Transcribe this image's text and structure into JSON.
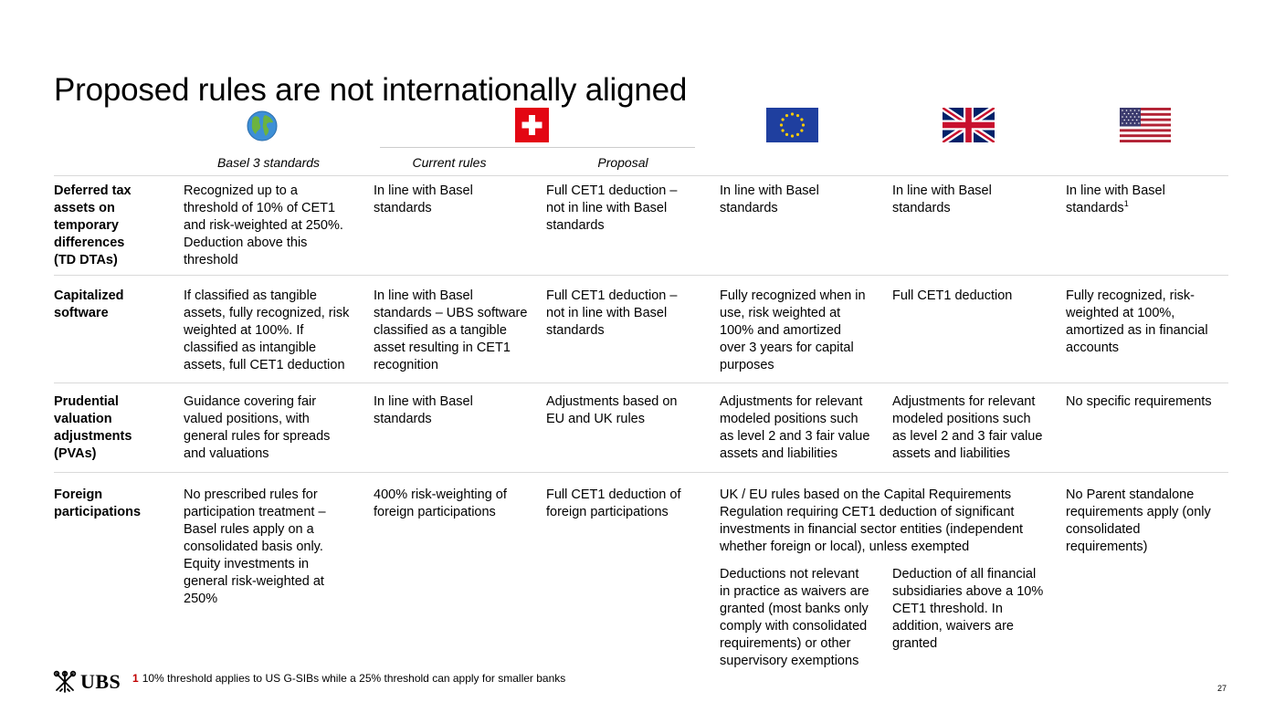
{
  "title": "Proposed rules are not internationally aligned",
  "icons": {
    "basel": "globe-icon",
    "swiss": "swiss-flag-icon",
    "eu": "eu-flag-icon",
    "uk": "uk-flag-icon",
    "us": "us-flag-icon"
  },
  "colors": {
    "swiss_red": "#e30613",
    "eu_blue": "#1f3f9f",
    "eu_star": "#ffcc00",
    "ubs_red": "#c00000"
  },
  "columns": {
    "basel": "Basel 3 standards",
    "current": "Current rules",
    "proposal": "Proposal"
  },
  "rows": [
    {
      "label": "Deferred tax\nassets on\ntemporary\ndifferences\n(TD DTAs)",
      "basel": "Recognized up to a\nthreshold of 10% of CET1\nand risk-weighted at 250%.\nDeduction above this\nthreshold",
      "current": "In line with Basel\nstandards",
      "proposal": "Full CET1 deduction –\nnot in line with Basel\nstandards",
      "eu": "In line with Basel\nstandards",
      "uk": "In line with Basel\nstandards",
      "us": "In line with Basel\nstandards",
      "us_note": "1"
    },
    {
      "label": "Capitalized\nsoftware",
      "basel": "If classified as tangible\nassets, fully recognized, risk\nweighted at 100%. If\nclassified as intangible\nassets, full CET1 deduction",
      "current": "In line with Basel\nstandards – UBS software\nclassified as a tangible\nasset resulting in CET1\nrecognition",
      "proposal": "Full CET1 deduction –\nnot in line with Basel\nstandards",
      "eu": "Fully recognized when in\nuse, risk weighted at\n100% and amortized\nover 3 years for capital\npurposes",
      "uk": "Full CET1 deduction",
      "us": "Fully recognized, risk-\nweighted at 100%,\namortized as in financial\naccounts"
    },
    {
      "label": "Prudential\nvaluation\nadjustments\n(PVAs)",
      "basel": "Guidance covering fair\nvalued positions, with\ngeneral rules for spreads\nand valuations",
      "current": "In line with Basel\nstandards",
      "proposal": "Adjustments based on\nEU and UK rules",
      "eu": "Adjustments for relevant\nmodeled positions such\nas level 2 and 3 fair value\nassets and liabilities",
      "uk": "Adjustments for relevant\nmodeled positions such\nas level 2 and 3 fair value\nassets and liabilities",
      "us": "No specific requirements"
    },
    {
      "label": "Foreign\nparticipations",
      "basel": "No prescribed rules for\nparticipation treatment –\nBasel rules apply on a\nconsolidated basis only.\nEquity investments in\ngeneral risk-weighted at\n250%",
      "current": "400% risk-weighting of\nforeign participations",
      "proposal": "Full CET1 deduction of\nforeign participations",
      "eu_uk": "UK / EU rules based on the Capital Requirements\nRegulation requiring CET1 deduction of significant\ninvestments in financial sector entities (independent\nwhether foreign or local), unless exempted",
      "eu": "Deductions not relevant\nin practice as waivers are\ngranted (most banks only\ncomply with consolidated\nrequirements) or other\nsupervisory exemptions",
      "uk": "Deduction of all financial\nsubsidiaries above a 10%\nCET1 threshold. In\naddition, waivers are\ngranted",
      "us": "No Parent standalone\nrequirements apply (only\nconsolidated\nrequirements)"
    }
  ],
  "logo": {
    "text": "UBS",
    "icon": "ubs-keys-icon"
  },
  "footnote": {
    "number": "1",
    "text": "10% threshold applies to US G-SIBs while a 25% threshold can apply for smaller banks"
  },
  "page_number": "27"
}
